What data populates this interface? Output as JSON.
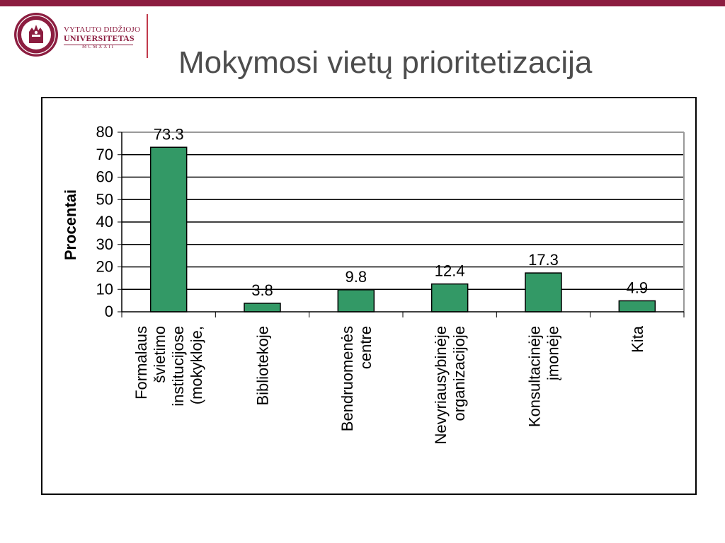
{
  "header": {
    "university_line1": "VYTAUTO DIDŽIOJO",
    "university_line2": "UNIVERSITETAS",
    "university_year": "MCMXXII",
    "title": "Mokymosi vietų prioritetizacija"
  },
  "colors": {
    "brand": "#8c1d40",
    "bar": "#339966",
    "title": "#4d4d4d"
  },
  "chart_data": {
    "type": "bar",
    "title": "",
    "xlabel": "",
    "ylabel": "Procentai",
    "ylim": [
      0,
      80
    ],
    "yticks": [
      0,
      10,
      20,
      30,
      40,
      50,
      60,
      70,
      80
    ],
    "grid": true,
    "legend": "none",
    "categories": [
      "Formalaus švietimo institucijose (mokykloje,",
      "Bibliotekoje",
      "Bendruomenės centre",
      "Nevyriausybinėje organizacijoje",
      "Konsultacinėje įmonėje",
      "Kita"
    ],
    "category_lines": [
      [
        "Formalaus",
        "švietimo",
        "institucijose",
        "(mokykloje,"
      ],
      [
        "Bibliotekoje"
      ],
      [
        "Bendruomenės",
        "centre"
      ],
      [
        "Nevyriausybinėje",
        "organizacijoje"
      ],
      [
        "Konsultacinėje",
        "įmonėje"
      ],
      [
        "Kita"
      ]
    ],
    "values": [
      73.3,
      3.8,
      9.8,
      12.4,
      17.3,
      4.9
    ],
    "data_labels": [
      "73.3",
      "3.8",
      "9.8",
      "12.4",
      "17.3",
      "4.9"
    ]
  }
}
